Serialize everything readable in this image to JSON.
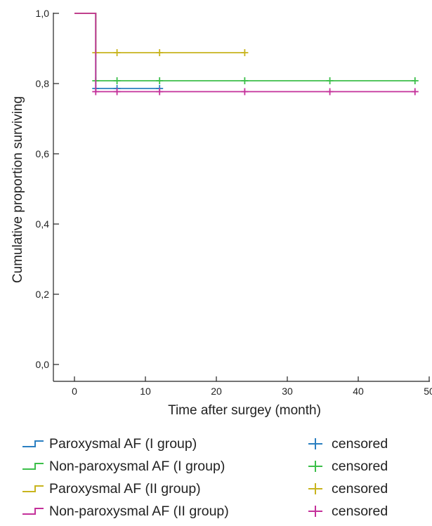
{
  "chart_data": {
    "type": "line",
    "subtype": "kaplan-meier step plot",
    "title": "",
    "xlabel": "Time after surgey (month)",
    "ylabel": "Cumulative proportion surviving",
    "xlim": [
      -3,
      50
    ],
    "ylim": [
      -0.04,
      1.0
    ],
    "x_ticks": [
      0,
      10,
      20,
      30,
      40,
      50
    ],
    "x_tick_labels": [
      "0",
      "10",
      "20",
      "30",
      "40",
      "50"
    ],
    "y_ticks": [
      0.0,
      0.2,
      0.4,
      0.6,
      0.8,
      1.0
    ],
    "y_tick_labels": [
      "0,0",
      "0,2",
      "0,4",
      "0,6",
      "0,8",
      "1,0"
    ],
    "grid": false,
    "legend_position": "bottom",
    "series": [
      {
        "name": "Paroxysmal AF (I group)",
        "color": "#2a7fc1",
        "steps": [
          [
            0,
            1.0
          ],
          [
            3,
            0.786
          ],
          [
            12,
            0.786
          ]
        ],
        "censored_x": [
          3,
          6,
          12
        ],
        "censored_label": "censored"
      },
      {
        "name": "Non-paroxysmal AF (I group)",
        "color": "#3cbf4a",
        "steps": [
          [
            0,
            1.0
          ],
          [
            3,
            0.808
          ],
          [
            48,
            0.808
          ]
        ],
        "censored_x": [
          3,
          6,
          12,
          24,
          36,
          48
        ],
        "censored_label": "censored"
      },
      {
        "name": "Paroxysmal AF (II group)",
        "color": "#c8b41e",
        "steps": [
          [
            0,
            1.0
          ],
          [
            3,
            0.888
          ],
          [
            24,
            0.888
          ]
        ],
        "censored_x": [
          3,
          6,
          12,
          24
        ],
        "censored_label": "censored"
      },
      {
        "name": "Non-paroxysmal AF (II group)",
        "color": "#c4309a",
        "steps": [
          [
            0,
            1.0
          ],
          [
            3,
            0.777
          ],
          [
            48,
            0.777
          ]
        ],
        "censored_x": [
          3,
          6,
          12,
          24,
          36,
          48
        ],
        "censored_label": "censored"
      }
    ]
  }
}
